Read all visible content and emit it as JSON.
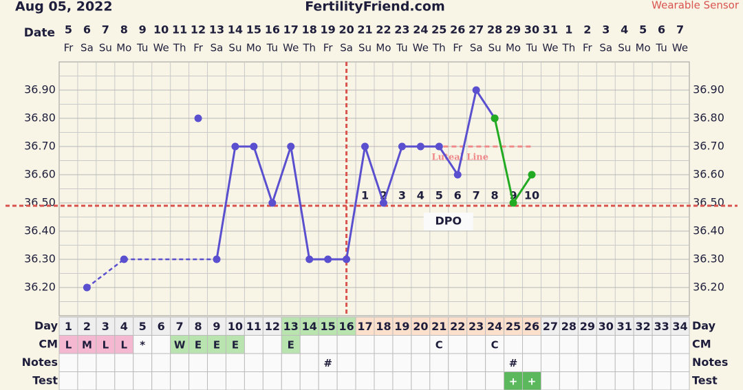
{
  "chart_data": {
    "type": "line",
    "title": "FertilityFriend.com",
    "subtitle": "Aug 05, 2022",
    "annotation": "Wearable Sensor",
    "row_labels": {
      "date": "Date",
      "day": "Day",
      "cm": "CM",
      "notes": "Notes",
      "test": "Test"
    },
    "categories": [
      "5",
      "6",
      "7",
      "8",
      "9",
      "10",
      "11",
      "12",
      "13",
      "14",
      "15",
      "16",
      "17",
      "18",
      "19",
      "20",
      "21",
      "22",
      "23",
      "24",
      "25",
      "26",
      "27",
      "28",
      "29",
      "30",
      "31",
      "1",
      "2",
      "3",
      "4",
      "5",
      "6",
      "7"
    ],
    "weekdays": [
      "Fr",
      "Sa",
      "Su",
      "Mo",
      "Tu",
      "We",
      "Th",
      "Fr",
      "Sa",
      "Su",
      "Mo",
      "Tu",
      "We",
      "Th",
      "Fr",
      "Sa",
      "Su",
      "Mo",
      "Tu",
      "We",
      "Th",
      "Fr",
      "Sa",
      "Su",
      "Mo",
      "Tu",
      "We",
      "Th",
      "Fr",
      "Sa",
      "Su",
      "Mo",
      "Tu",
      "We"
    ],
    "days": [
      1,
      2,
      3,
      4,
      5,
      6,
      7,
      8,
      9,
      10,
      11,
      12,
      13,
      14,
      15,
      16,
      17,
      18,
      19,
      20,
      21,
      22,
      23,
      24,
      25,
      26,
      27,
      28,
      29,
      30,
      31,
      32,
      33,
      34
    ],
    "day_colors": [
      "#efefef",
      "#efefef",
      "#efefef",
      "#efefef",
      "#efefef",
      "#efefef",
      "#efefef",
      "#efefef",
      "#efefef",
      "#efefef",
      "#efefef",
      "#efefef",
      "#b9e4b0",
      "#b9e4b0",
      "#b9e4b0",
      "#b9e4b0",
      "#fde0cc",
      "#fde0cc",
      "#fde0cc",
      "#fde0cc",
      "#fde0cc",
      "#fde0cc",
      "#fde0cc",
      "#fde0cc",
      "#fde0cc",
      "#fde0cc",
      "#efefef",
      "#efefef",
      "#efefef",
      "#efefef",
      "#efefef",
      "#efefef",
      "#efefef",
      "#efefef"
    ],
    "cm": [
      "L",
      "M",
      "L",
      "L",
      "*",
      null,
      "W",
      "E",
      "E",
      "E",
      null,
      null,
      "E",
      null,
      null,
      null,
      null,
      null,
      null,
      null,
      "C",
      null,
      null,
      "C",
      null,
      null,
      null,
      null,
      null,
      null,
      null,
      null,
      null,
      null
    ],
    "cm_colors": [
      "#f4b8d0",
      "#f4b8d0",
      "#f4b8d0",
      "#f4b8d0",
      null,
      null,
      "#b9e4b0",
      "#b9e4b0",
      "#b9e4b0",
      "#b9e4b0",
      null,
      null,
      "#b9e4b0",
      null,
      null,
      null,
      null,
      null,
      null,
      null,
      null,
      null,
      null,
      null,
      null,
      null,
      null,
      null,
      null,
      null,
      null,
      null,
      null,
      null
    ],
    "notes": [
      null,
      null,
      null,
      null,
      null,
      null,
      null,
      null,
      null,
      null,
      null,
      null,
      null,
      null,
      "#",
      null,
      null,
      null,
      null,
      null,
      null,
      null,
      null,
      null,
      "#",
      null,
      null,
      null,
      null,
      null,
      null,
      null,
      null,
      null
    ],
    "test": [
      null,
      null,
      null,
      null,
      null,
      null,
      null,
      null,
      null,
      null,
      null,
      null,
      null,
      null,
      null,
      null,
      null,
      null,
      null,
      null,
      null,
      null,
      null,
      null,
      "+",
      "+",
      null,
      null,
      null,
      null,
      null,
      null,
      null,
      null
    ],
    "test_colors": [
      null,
      null,
      null,
      null,
      null,
      null,
      null,
      null,
      null,
      null,
      null,
      null,
      null,
      null,
      null,
      null,
      null,
      null,
      null,
      null,
      null,
      null,
      null,
      null,
      "#5cb85c",
      "#5cb85c",
      null,
      null,
      null,
      null,
      null,
      null,
      null,
      null
    ],
    "ylim": [
      36.1,
      37.0
    ],
    "yticks": [
      {
        "value": 36.2,
        "label": "36.20"
      },
      {
        "value": 36.3,
        "label": "36.30"
      },
      {
        "value": 36.4,
        "label": "36.40"
      },
      {
        "value": 36.5,
        "label": "36.50"
      },
      {
        "value": 36.6,
        "label": "36.60"
      },
      {
        "value": 36.7,
        "label": "36.70"
      },
      {
        "value": 36.8,
        "label": "36.80"
      },
      {
        "value": 36.9,
        "label": "36.90"
      }
    ],
    "grid": true,
    "series": [
      {
        "color": "#5a4fcf",
        "connect_gaps": true,
        "values": [
          null,
          36.2,
          null,
          36.3,
          null,
          null,
          null,
          null,
          36.3,
          36.7,
          36.7,
          36.5,
          36.7,
          36.3,
          36.3,
          36.3,
          36.7,
          36.5,
          36.7,
          36.7,
          36.7,
          36.6,
          36.9,
          36.8,
          null,
          null,
          null,
          null,
          null,
          null,
          null,
          null,
          null,
          null
        ]
      },
      {
        "color": "#22aa22",
        "connect_gaps": false,
        "values": [
          null,
          null,
          null,
          null,
          null,
          null,
          null,
          null,
          null,
          null,
          null,
          null,
          null,
          null,
          null,
          null,
          null,
          null,
          null,
          null,
          null,
          null,
          null,
          36.8,
          36.5,
          36.6,
          null,
          null,
          null,
          null,
          null,
          null,
          null,
          null
        ]
      },
      {
        "color": "#5a4fcf",
        "connect_gaps": false,
        "values": [
          null,
          null,
          null,
          null,
          null,
          null,
          null,
          36.8,
          null,
          null,
          null,
          null,
          null,
          null,
          null,
          null,
          null,
          null,
          null,
          null,
          null,
          null,
          null,
          null,
          null,
          null,
          null,
          null,
          null,
          null,
          null,
          null,
          null,
          null
        ]
      }
    ],
    "coverline": {
      "value": 36.49,
      "color": "#d9534f"
    },
    "ovulation_day": 16,
    "luteal_line": {
      "label": "Luteal Line",
      "color": "#f08a8a",
      "values": [
        null,
        null,
        null,
        null,
        null,
        null,
        null,
        null,
        null,
        null,
        null,
        null,
        null,
        null,
        null,
        null,
        null,
        null,
        36.7,
        36.7,
        36.7,
        36.7,
        36.7,
        36.7,
        36.7,
        36.7,
        null,
        null,
        null,
        null,
        null,
        null,
        null,
        null
      ]
    },
    "dpo": {
      "label": "DPO",
      "values": [
        null,
        null,
        null,
        null,
        null,
        null,
        null,
        null,
        null,
        null,
        null,
        null,
        null,
        null,
        null,
        null,
        1,
        2,
        3,
        4,
        5,
        6,
        7,
        8,
        9,
        10,
        null,
        null,
        null,
        null,
        null,
        null,
        null,
        null
      ]
    }
  }
}
